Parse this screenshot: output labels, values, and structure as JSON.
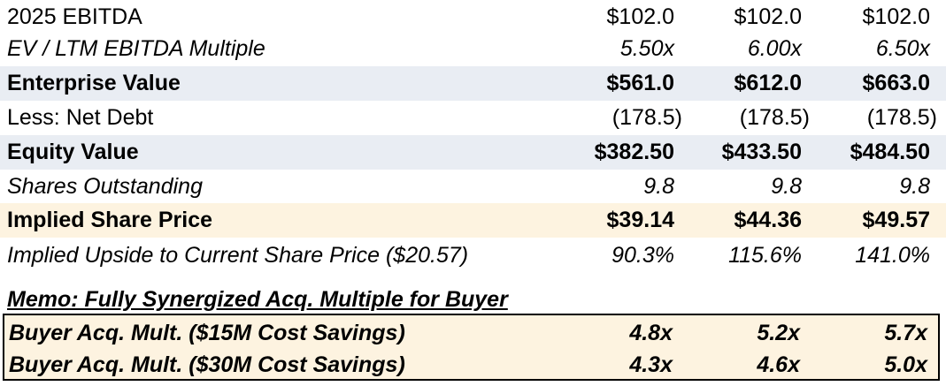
{
  "rows": [
    {
      "label": "2025 EBITDA",
      "values": [
        "$102.0",
        "$102.0",
        "$102.0"
      ]
    },
    {
      "label": "EV / LTM EBITDA Multiple",
      "values": [
        "5.50x",
        "6.00x",
        "6.50x"
      ]
    },
    {
      "label": "Enterprise Value",
      "values": [
        "$561.0",
        "$612.0",
        "$663.0"
      ]
    },
    {
      "label": "Less: Net Debt",
      "values": [
        "(178.5)",
        "(178.5)",
        "(178.5)"
      ]
    },
    {
      "label": "Equity Value",
      "values": [
        "$382.50",
        "$433.50",
        "$484.50"
      ]
    },
    {
      "label": "Shares Outstanding",
      "values": [
        "9.8",
        "9.8",
        "9.8"
      ]
    },
    {
      "label": "Implied Share Price",
      "values": [
        "$39.14",
        "$44.36",
        "$49.57"
      ]
    },
    {
      "label": "Implied Upside to Current Share Price ($20.57)",
      "values": [
        "90.3%",
        "115.6%",
        "141.0%"
      ]
    }
  ],
  "memo": {
    "title": "Memo: Fully Synergized Acq. Multiple for Buyer",
    "rows": [
      {
        "label": "Buyer Acq. Mult. ($15M Cost Savings)",
        "values": [
          "4.8x",
          "5.2x",
          "5.7x"
        ]
      },
      {
        "label": "Buyer Acq. Mult. ($30M Cost Savings)",
        "values": [
          "4.3x",
          "4.6x",
          "5.0x"
        ]
      }
    ]
  },
  "colors": {
    "enterprise_equity_shade": "#e9edf3",
    "share_price_memo_shade": "#fdf3e0"
  }
}
